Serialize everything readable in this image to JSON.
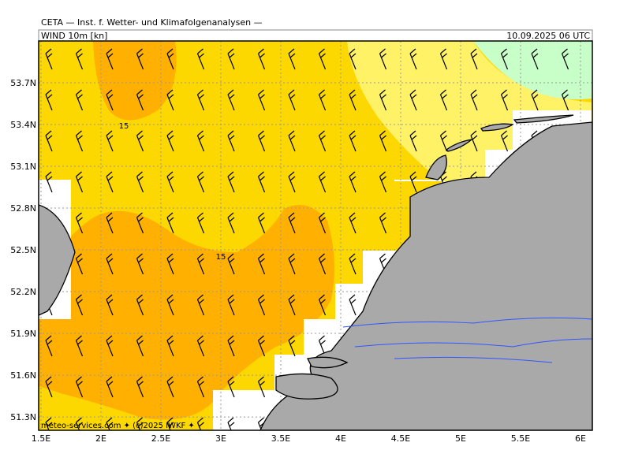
{
  "header": {
    "title": "CETA — Inst. f. Wetter- und Klimafolgenanalysen —",
    "field": "WIND 10m [kn]",
    "time": "10.09.2025 06 UTC"
  },
  "map": {
    "lat_ticks": [
      {
        "value": 53.7,
        "label": "53.7N"
      },
      {
        "value": 53.4,
        "label": "53.4N"
      },
      {
        "value": 53.1,
        "label": "53.1N"
      },
      {
        "value": 52.8,
        "label": "52.8N"
      },
      {
        "value": 52.5,
        "label": "52.5N"
      },
      {
        "value": 52.2,
        "label": "52.2N"
      },
      {
        "value": 51.9,
        "label": "51.9N"
      },
      {
        "value": 51.6,
        "label": "51.6N"
      },
      {
        "value": 51.3,
        "label": "51.3N"
      }
    ],
    "lon_ticks": [
      {
        "value": 1.5,
        "label": "1.5E"
      },
      {
        "value": 2,
        "label": "2E"
      },
      {
        "value": 2.5,
        "label": "2.5E"
      },
      {
        "value": 3,
        "label": "3E"
      },
      {
        "value": 3.5,
        "label": "3.5E"
      },
      {
        "value": 4,
        "label": "4E"
      },
      {
        "value": 4.5,
        "label": "4.5E"
      },
      {
        "value": 5,
        "label": "5E"
      },
      {
        "value": 5.5,
        "label": "5.5E"
      },
      {
        "value": 6,
        "label": "6E"
      }
    ],
    "contour_labels": [
      "15",
      "15"
    ],
    "footer": "meteo-services.com ✦ (c)2025 IWKF ✦"
  }
}
